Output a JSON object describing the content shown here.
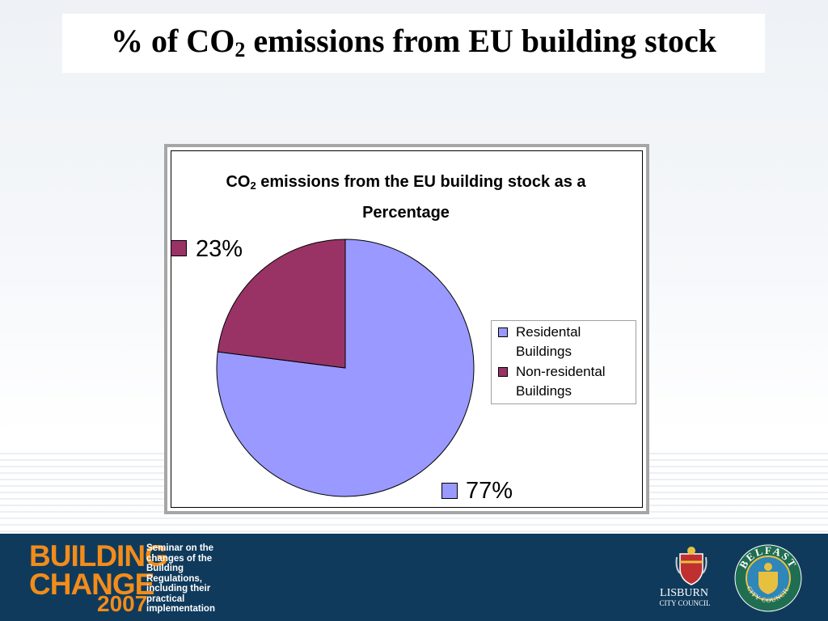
{
  "slide": {
    "title_pre": "% of CO",
    "title_sub": "2",
    "title_post": " emissions from EU building stock"
  },
  "chart_data": {
    "type": "pie",
    "title_pre": "CO",
    "title_sub": "2",
    "title_post": " emissions from the EU building stock as a Percentage",
    "categories": [
      "Residental Buildings",
      "Non-residental Buildings"
    ],
    "values": [
      77,
      23
    ],
    "labels": [
      "77%",
      "23%"
    ],
    "colors": [
      "#9999ff",
      "#993366"
    ],
    "legend_position": "right"
  },
  "legend": {
    "items": [
      {
        "line1": "Residental",
        "line2": "Buildings",
        "color": "#9999ff"
      },
      {
        "line1": "Non-residental",
        "line2": "Buildings",
        "color": "#993366"
      }
    ]
  },
  "footer": {
    "logo_line1": "BUILDING",
    "logo_line2": "CHANGE",
    "logo_year": "2007",
    "seminar_text": "Seminar on the changes of the Building Regulations, including their practical implementation",
    "council1_name": "LISBURN",
    "council1_sub": "CITY COUNCIL",
    "council2_name": "BELFAST",
    "council2_sub": "CITY COUNCIL",
    "accent_color": "#f28c1a",
    "footer_color": "#0f3a5c"
  }
}
